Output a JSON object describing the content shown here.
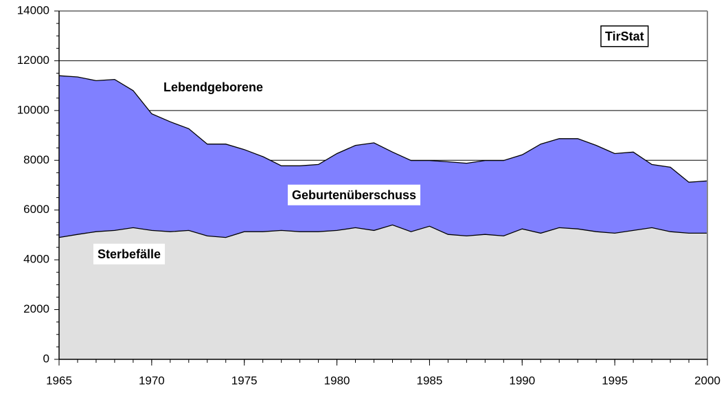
{
  "chart_data": {
    "type": "area",
    "x": [
      1965,
      1966,
      1967,
      1968,
      1969,
      1970,
      1971,
      1972,
      1973,
      1974,
      1975,
      1976,
      1977,
      1978,
      1979,
      1980,
      1981,
      1982,
      1983,
      1984,
      1985,
      1986,
      1987,
      1988,
      1989,
      1990,
      1991,
      1992,
      1993,
      1994,
      1995,
      1996,
      1997,
      1998,
      1999,
      2000
    ],
    "series": [
      {
        "name": "Lebendgeborene",
        "color": "#8080ff",
        "values": [
          11400,
          11350,
          11200,
          11250,
          10800,
          9870,
          9550,
          9270,
          8650,
          8650,
          8430,
          8150,
          7780,
          7780,
          7830,
          8270,
          8600,
          8700,
          8330,
          7990,
          7990,
          7940,
          7880,
          7990,
          7990,
          8220,
          8650,
          8870,
          8870,
          8600,
          8270,
          8330,
          7830,
          7720,
          7120,
          7170
        ]
      },
      {
        "name": "Sterbefälle",
        "color": "#e0e0e0",
        "values": [
          4900,
          5020,
          5130,
          5180,
          5290,
          5180,
          5130,
          5180,
          4960,
          4900,
          5130,
          5130,
          5180,
          5130,
          5130,
          5180,
          5290,
          5180,
          5400,
          5130,
          5350,
          5020,
          4960,
          5020,
          4960,
          5240,
          5070,
          5290,
          5240,
          5130,
          5070,
          5180,
          5290,
          5130,
          5070,
          5070
        ]
      }
    ],
    "annotation": "Geburtenüberschuss",
    "source": "TirStat",
    "xlim": [
      1965,
      2000
    ],
    "xticks": [
      1965,
      1970,
      1975,
      1980,
      1985,
      1990,
      1995,
      2000
    ],
    "ylim": [
      0,
      14000
    ],
    "yticks": [
      0,
      2000,
      4000,
      6000,
      8000,
      10000,
      12000,
      14000
    ],
    "grid": true
  }
}
